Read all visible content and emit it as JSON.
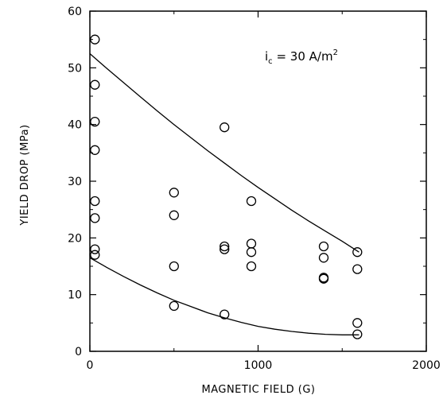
{
  "chart_data": {
    "type": "scatter",
    "xlabel": "MAGNETIC FIELD (G)",
    "ylabel": "YIELD DROP (MPa)",
    "xlim": [
      0,
      2000
    ],
    "ylim": [
      0,
      60
    ],
    "x_ticks": [
      "0",
      "1000",
      "2000"
    ],
    "y_ticks": [
      "0",
      "10",
      "20",
      "30",
      "40",
      "50",
      "60"
    ],
    "grid": false,
    "annotation": {
      "base": "i",
      "sub": "c",
      "middle": " = 30 A/m",
      "sup": "2"
    },
    "series": [
      {
        "marker": "open-circle",
        "points": [
          [
            30,
            55
          ],
          [
            30,
            47
          ],
          [
            30,
            40.5
          ],
          [
            30,
            35.5
          ],
          [
            30,
            26.5
          ],
          [
            30,
            23.5
          ],
          [
            30,
            18
          ],
          [
            30,
            17
          ],
          [
            500,
            28
          ],
          [
            500,
            24
          ],
          [
            500,
            15
          ],
          [
            500,
            8
          ],
          [
            800,
            39.5
          ],
          [
            800,
            18.5
          ],
          [
            800,
            18
          ],
          [
            800,
            6.5
          ],
          [
            960,
            26.5
          ],
          [
            960,
            19
          ],
          [
            960,
            17.5
          ],
          [
            960,
            15
          ],
          [
            1390,
            18.5
          ],
          [
            1390,
            16.5
          ],
          [
            1390,
            13
          ],
          [
            1390,
            12.8
          ],
          [
            1590,
            17.5
          ],
          [
            1590,
            14.5
          ],
          [
            1590,
            5
          ],
          [
            1590,
            3
          ]
        ]
      }
    ],
    "fit_curves": [
      {
        "x": [
          0,
          100,
          200,
          300,
          400,
          500,
          600,
          700,
          800,
          900,
          1000,
          1100,
          1200,
          1300,
          1400,
          1500,
          1600
        ],
        "y": [
          52.5,
          49.9,
          47.4,
          44.9,
          42.4,
          40.0,
          37.7,
          35.4,
          33.2,
          31.0,
          28.9,
          26.9,
          24.9,
          23.0,
          21.2,
          19.4,
          17.5
        ]
      },
      {
        "x": [
          0,
          100,
          200,
          300,
          400,
          500,
          600,
          700,
          800,
          900,
          1000,
          1100,
          1200,
          1300,
          1400,
          1500,
          1600
        ],
        "y": [
          16.5,
          14.8,
          13.2,
          11.7,
          10.3,
          9.0,
          7.9,
          6.8,
          5.9,
          5.1,
          4.4,
          3.9,
          3.5,
          3.2,
          3.0,
          2.9,
          2.9
        ]
      }
    ]
  }
}
